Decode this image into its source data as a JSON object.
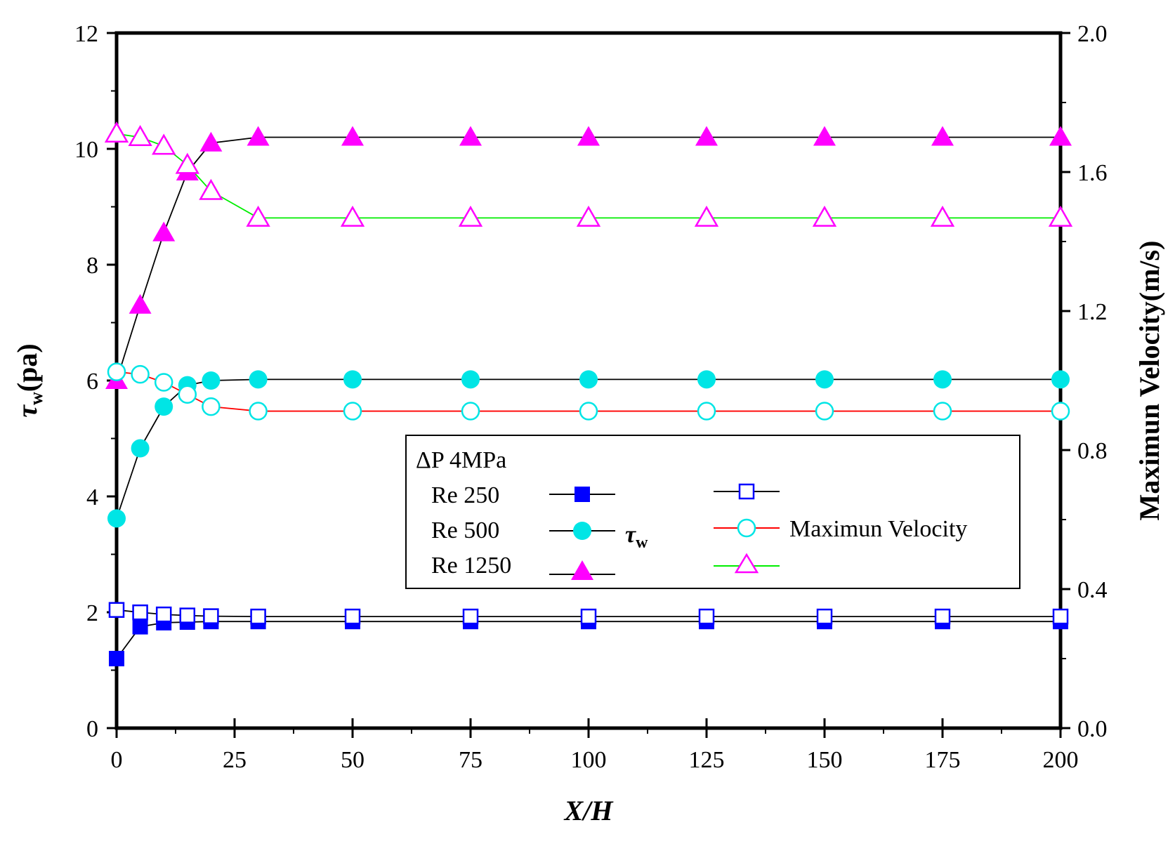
{
  "chart_data": {
    "type": "line",
    "x_axis": {
      "label_main": "X",
      "label_sep": "/",
      "label_end": "H",
      "range": [
        0,
        200
      ],
      "ticks": [
        "0",
        "25",
        "50",
        "75",
        "100",
        "125",
        "150",
        "175",
        "200"
      ],
      "tick_values": [
        0,
        25,
        50,
        75,
        100,
        125,
        150,
        175,
        200
      ]
    },
    "y_left": {
      "symbol": "τ",
      "subscript": "w",
      "unit": "(pa)",
      "range": [
        0,
        12
      ],
      "ticks": [
        "0",
        "2",
        "4",
        "6",
        "8",
        "10",
        "12"
      ],
      "tick_values": [
        0,
        2,
        4,
        6,
        8,
        10,
        12
      ]
    },
    "y_right": {
      "label": "Maximun Velocity(m/s)",
      "range": [
        0,
        2
      ],
      "ticks": [
        "0.0",
        "0.4",
        "0.8",
        "1.2",
        "1.6",
        "2.0"
      ],
      "tick_values": [
        0,
        0.4,
        0.8,
        1.2,
        1.6,
        2.0
      ]
    },
    "x": [
      0,
      5,
      10,
      15,
      20,
      30,
      50,
      75,
      100,
      125,
      150,
      175,
      200
    ],
    "series": [
      {
        "name": "Re 250 τw",
        "axis": "left",
        "marker": "square",
        "filled": true,
        "color": "#0000ff",
        "line_color": "#000000",
        "values": [
          1.2,
          1.75,
          1.82,
          1.83,
          1.84,
          1.84,
          1.84,
          1.84,
          1.84,
          1.84,
          1.84,
          1.84,
          1.84
        ]
      },
      {
        "name": "Re 500 τw",
        "axis": "left",
        "marker": "circle",
        "filled": true,
        "color": "#00e5e5",
        "line_color": "#000000",
        "values": [
          3.62,
          4.83,
          5.55,
          5.92,
          6.0,
          6.02,
          6.02,
          6.02,
          6.02,
          6.02,
          6.02,
          6.02,
          6.02
        ]
      },
      {
        "name": "Re 1250 τw",
        "axis": "left",
        "marker": "triangle",
        "filled": true,
        "color": "#ff00ff",
        "line_color": "#000000",
        "values": [
          6.0,
          7.3,
          8.55,
          9.6,
          10.1,
          10.2,
          10.2,
          10.2,
          10.2,
          10.2,
          10.2,
          10.2,
          10.2
        ]
      },
      {
        "name": "Re 250 Maximun Velocity",
        "axis": "right",
        "marker": "square",
        "filled": false,
        "color": "#0000ff",
        "line_color": "#000000",
        "values": [
          0.34,
          0.333,
          0.327,
          0.324,
          0.322,
          0.321,
          0.321,
          0.321,
          0.321,
          0.321,
          0.321,
          0.321,
          0.321
        ]
      },
      {
        "name": "Re 500 Maximun Velocity",
        "axis": "right",
        "marker": "circle",
        "filled": false,
        "color": "#00e5e5",
        "line_color": "#ff0000",
        "values": [
          1.025,
          1.018,
          0.995,
          0.96,
          0.925,
          0.912,
          0.912,
          0.912,
          0.912,
          0.912,
          0.912,
          0.912,
          0.912
        ]
      },
      {
        "name": "Re 1250 Maximun Velocity",
        "axis": "right",
        "marker": "triangle",
        "filled": false,
        "color": "#ff00ff",
        "line_color": "#00ee00",
        "values": [
          1.71,
          1.7,
          1.675,
          1.62,
          1.545,
          1.468,
          1.468,
          1.468,
          1.468,
          1.468,
          1.468,
          1.468,
          1.468
        ]
      }
    ],
    "legend": {
      "title": "ΔP 4MPa",
      "rows": [
        "Re 250",
        "Re 500",
        "Re 1250"
      ],
      "tau_symbol": "τ",
      "tau_sub": "w",
      "velocity_label": "Maximun Velocity",
      "placement": "center-right"
    }
  }
}
